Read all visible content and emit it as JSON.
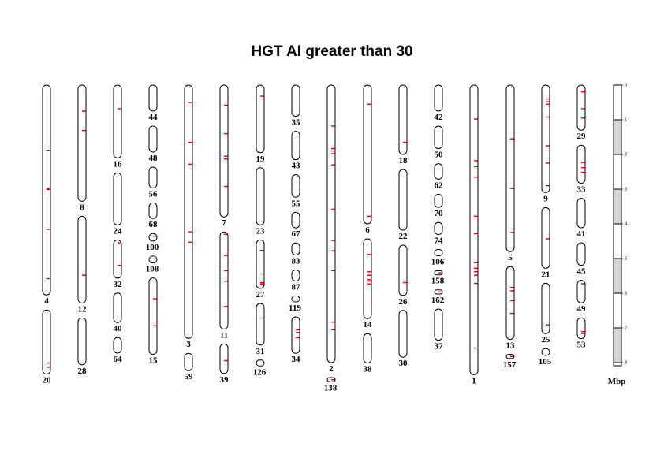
{
  "title": "HGT AI greater than 30",
  "unit_label": "Mbp",
  "scale_ticks": [
    ".0",
    ".1",
    ".2",
    ".3",
    ".4",
    ".5",
    ".6",
    ".7",
    ".8"
  ],
  "colors": {
    "marker": "#e60000",
    "outline": "#000000",
    "scale_shade": "#d3d3d3"
  },
  "chart_data": {
    "type": "ideogram",
    "description_units": "Mbp",
    "scale_range": [
      0,
      0.8
    ],
    "columns": [
      {
        "contigs": [
          {
            "label": "4",
            "length": 0.605,
            "markers": [
              0.188,
              0.298,
              0.301,
              0.416,
              0.558
            ]
          },
          {
            "label": "20",
            "length": 0.185,
            "markers": [
              0.153,
              0.165
            ]
          }
        ]
      },
      {
        "contigs": [
          {
            "label": "8",
            "length": 0.335,
            "markers": [
              0.075,
              0.131
            ]
          },
          {
            "label": "12",
            "length": 0.25,
            "markers": [
              0.17
            ]
          },
          {
            "label": "28",
            "length": 0.135,
            "markers": []
          }
        ]
      },
      {
        "contigs": [
          {
            "label": "16",
            "length": 0.21,
            "markers": [
              0.068
            ]
          },
          {
            "label": "24",
            "length": 0.15,
            "markers": []
          },
          {
            "label": "32",
            "length": 0.11,
            "markers": [
              0.008,
              0.073
            ]
          },
          {
            "label": "40",
            "length": 0.085,
            "markers": []
          },
          {
            "label": "64",
            "length": 0.045,
            "markers": []
          }
        ]
      },
      {
        "contigs": [
          {
            "label": "44",
            "length": 0.075,
            "markers": []
          },
          {
            "label": "48",
            "length": 0.075,
            "markers": []
          },
          {
            "label": "56",
            "length": 0.06,
            "markers": []
          },
          {
            "label": "68",
            "length": 0.045,
            "markers": []
          },
          {
            "label": "100",
            "length": 0.022,
            "markers": [
              0.008
            ]
          },
          {
            "label": "108",
            "length": 0.02,
            "markers": []
          },
          {
            "label": "15",
            "length": 0.22,
            "markers": [
              0.06,
              0.138
            ]
          }
        ]
      },
      {
        "contigs": [
          {
            "label": "3",
            "length": 0.73,
            "markers": [
              0.05,
              0.165,
              0.228,
              0.423,
              0.453
            ]
          },
          {
            "label": "59",
            "length": 0.05,
            "markers": []
          }
        ]
      },
      {
        "contigs": [
          {
            "label": "7",
            "length": 0.38,
            "markers": [
              0.058,
              0.14,
              0.205,
              0.213,
              0.292
            ]
          },
          {
            "label": "11",
            "length": 0.28,
            "markers": [
              0.007,
              0.068,
              0.112,
              0.142,
              0.215
            ]
          },
          {
            "label": "39",
            "length": 0.085,
            "markers": [
              0.048
            ]
          }
        ]
      },
      {
        "contigs": [
          {
            "label": "19",
            "length": 0.195,
            "markers": [
              0.032
            ]
          },
          {
            "label": "23",
            "length": 0.165,
            "markers": []
          },
          {
            "label": "27",
            "length": 0.14,
            "markers": [
              0.03,
              0.098,
              0.123,
              0.127
            ]
          },
          {
            "label": "31",
            "length": 0.12,
            "markers": [
              0.042
            ]
          },
          {
            "label": "126",
            "length": 0.017,
            "markers": []
          }
        ]
      },
      {
        "contigs": [
          {
            "label": "35",
            "length": 0.09,
            "markers": []
          },
          {
            "label": "43",
            "length": 0.082,
            "markers": []
          },
          {
            "label": "55",
            "length": 0.065,
            "markers": []
          },
          {
            "label": "67",
            "length": 0.045,
            "markers": []
          },
          {
            "label": "83",
            "length": 0.035,
            "markers": []
          },
          {
            "label": "87",
            "length": 0.032,
            "markers": []
          },
          {
            "label": "119",
            "length": 0.017,
            "markers": []
          },
          {
            "label": "34",
            "length": 0.105,
            "markers": [
              0.037,
              0.045,
              0.06
            ]
          }
        ]
      },
      {
        "contigs": [
          {
            "label": "2",
            "length": 0.8,
            "markers": [
              0.118,
              0.183,
              0.19,
              0.198,
              0.23,
              0.358,
              0.448,
              0.478,
              0.535,
              0.683,
              0.705
            ]
          },
          {
            "label": "138",
            "length": 0.012,
            "markers": [
              0.006
            ]
          }
        ]
      },
      {
        "contigs": [
          {
            "label": "6",
            "length": 0.4,
            "markers": [
              0.055,
              0.378
            ]
          },
          {
            "label": "14",
            "length": 0.23,
            "markers": [
              0.045,
              0.095,
              0.105,
              0.118,
              0.122,
              0.13
            ]
          },
          {
            "label": "38",
            "length": 0.085,
            "markers": []
          }
        ]
      },
      {
        "contigs": [
          {
            "label": "18",
            "length": 0.2,
            "markers": [
              0.165
            ]
          },
          {
            "label": "22",
            "length": 0.175,
            "markers": []
          },
          {
            "label": "26",
            "length": 0.145,
            "markers": [
              0.108
            ]
          },
          {
            "label": "30",
            "length": 0.135,
            "markers": []
          }
        ]
      },
      {
        "contigs": [
          {
            "label": "42",
            "length": 0.075,
            "markers": []
          },
          {
            "label": "50",
            "length": 0.065,
            "markers": []
          },
          {
            "label": "62",
            "length": 0.045,
            "markers": []
          },
          {
            "label": "70",
            "length": 0.038,
            "markers": []
          },
          {
            "label": "74",
            "length": 0.035,
            "markers": []
          },
          {
            "label": "106",
            "length": 0.018,
            "markers": []
          },
          {
            "label": "158",
            "length": 0.012,
            "markers": [
              0.006
            ]
          },
          {
            "label": "162",
            "length": 0.012,
            "markers": [
              0.006
            ]
          },
          {
            "label": "37",
            "length": 0.09,
            "markers": []
          }
        ]
      },
      {
        "contigs": [
          {
            "label": "1",
            "length": 0.835,
            "markers": [
              0.098,
              0.218,
              0.235,
              0.265,
              0.378,
              0.428,
              0.512,
              0.528,
              0.538,
              0.548,
              0.572,
              0.758
            ]
          }
        ]
      },
      {
        "contigs": [
          {
            "label": "5",
            "length": 0.48,
            "markers": [
              0.155,
              0.298,
              0.425
            ]
          },
          {
            "label": "13",
            "length": 0.21,
            "markers": [
              0.06,
              0.07,
              0.098,
              0.135
            ]
          },
          {
            "label": "157",
            "length": 0.012,
            "markers": [
              0.006
            ]
          }
        ]
      },
      {
        "contigs": [
          {
            "label": "9",
            "length": 0.31,
            "markers": [
              0.04,
              0.048,
              0.055,
              0.092,
              0.175,
              0.225,
              0.29
            ]
          },
          {
            "label": "21",
            "length": 0.175,
            "markers": [
              0.09
            ]
          },
          {
            "label": "25",
            "length": 0.145,
            "markers": [
              0.12
            ]
          },
          {
            "label": "105",
            "length": 0.02,
            "markers": []
          }
        ]
      },
      {
        "contigs": [
          {
            "label": "29",
            "length": 0.13,
            "markers": [
              0.02,
              0.068,
              0.095
            ]
          },
          {
            "label": "33",
            "length": 0.11,
            "markers": [
              0.05,
              0.065,
              0.078
            ]
          },
          {
            "label": "41",
            "length": 0.085,
            "markers": []
          },
          {
            "label": "45",
            "length": 0.065,
            "markers": []
          },
          {
            "label": "49",
            "length": 0.065,
            "markers": [
              0.01
            ]
          },
          {
            "label": "53",
            "length": 0.06,
            "markers": [
              0.04,
              0.045
            ]
          }
        ]
      }
    ]
  }
}
